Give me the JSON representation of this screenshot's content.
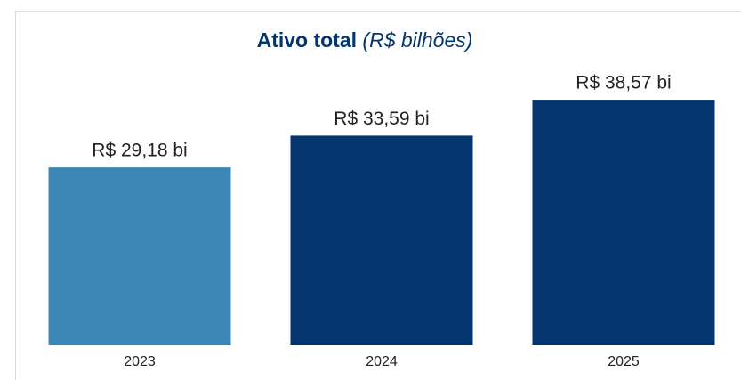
{
  "chart_data": {
    "type": "bar",
    "title": "Ativo total",
    "subtitle": "(R$ bilhões)",
    "categories": [
      "2023",
      "2024",
      "2025"
    ],
    "values": [
      29.18,
      33.59,
      38.57
    ],
    "value_labels": [
      "R$ 29,18 bi",
      "R$ 33,59 bi",
      "R$ 38,57 bi"
    ],
    "colors": [
      "#3c87b5",
      "#03356f",
      "#03356f"
    ],
    "ylim": [
      4.5,
      45
    ]
  }
}
